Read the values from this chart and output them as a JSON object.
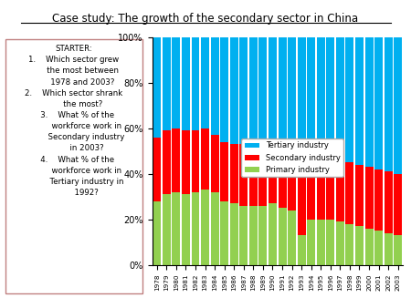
{
  "title": "Case study: The growth of the secondary sector in China",
  "years": [
    1978,
    1979,
    1980,
    1981,
    1982,
    1983,
    1984,
    1985,
    1986,
    1987,
    1988,
    1989,
    1990,
    1991,
    1992,
    1993,
    1994,
    1995,
    1996,
    1997,
    1998,
    1999,
    2000,
    2001,
    2002,
    2003
  ],
  "primary": [
    28,
    31,
    32,
    31,
    32,
    33,
    32,
    28,
    27,
    26,
    26,
    26,
    27,
    25,
    24,
    13,
    20,
    20,
    20,
    19,
    18,
    17,
    16,
    15,
    14,
    13
  ],
  "secondary": [
    28,
    28,
    28,
    28,
    27,
    27,
    25,
    26,
    26,
    27,
    27,
    27,
    27,
    27,
    27,
    27,
    27,
    27,
    27,
    27,
    27,
    27,
    27,
    27,
    27,
    27
  ],
  "tertiary": [
    44,
    41,
    40,
    41,
    41,
    40,
    43,
    46,
    47,
    47,
    47,
    47,
    46,
    48,
    49,
    60,
    53,
    53,
    53,
    54,
    55,
    56,
    57,
    58,
    59,
    60
  ],
  "colors": {
    "primary": "#92d050",
    "secondary": "#ff0000",
    "tertiary": "#00b0f0"
  },
  "ytick_labels": [
    "0%",
    "20%",
    "40%",
    "60%",
    "80%",
    "100%"
  ]
}
